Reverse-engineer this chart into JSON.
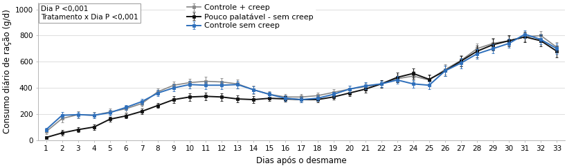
{
  "days": [
    1,
    2,
    3,
    4,
    5,
    6,
    7,
    8,
    9,
    10,
    11,
    12,
    13,
    14,
    15,
    16,
    17,
    18,
    19,
    20,
    21,
    22,
    23,
    24,
    25,
    26,
    27,
    28,
    29,
    30,
    31,
    32,
    33
  ],
  "controle_creep": [
    65,
    165,
    195,
    190,
    215,
    240,
    280,
    370,
    420,
    440,
    450,
    445,
    430,
    385,
    350,
    330,
    330,
    340,
    365,
    390,
    410,
    430,
    470,
    490,
    460,
    540,
    610,
    700,
    740,
    760,
    790,
    800,
    710
  ],
  "pouco_palatavel": [
    20,
    55,
    80,
    100,
    160,
    185,
    220,
    265,
    310,
    330,
    335,
    330,
    315,
    310,
    320,
    315,
    310,
    310,
    330,
    360,
    390,
    430,
    480,
    510,
    465,
    530,
    605,
    680,
    730,
    760,
    790,
    760,
    680
  ],
  "controle_sem_creep": [
    80,
    190,
    195,
    190,
    210,
    250,
    295,
    360,
    400,
    425,
    420,
    420,
    425,
    385,
    350,
    320,
    310,
    320,
    350,
    390,
    415,
    430,
    460,
    430,
    420,
    530,
    590,
    660,
    700,
    740,
    810,
    770,
    700
  ],
  "controle_creep_err": [
    20,
    30,
    25,
    25,
    25,
    25,
    25,
    25,
    30,
    30,
    35,
    30,
    35,
    30,
    25,
    25,
    20,
    25,
    25,
    25,
    25,
    25,
    30,
    35,
    35,
    40,
    40,
    40,
    40,
    35,
    35,
    35,
    40
  ],
  "pouco_palatavel_err": [
    10,
    20,
    20,
    20,
    20,
    20,
    20,
    20,
    25,
    30,
    30,
    30,
    25,
    25,
    20,
    20,
    20,
    20,
    20,
    25,
    25,
    30,
    35,
    40,
    35,
    40,
    40,
    45,
    45,
    40,
    40,
    40,
    45
  ],
  "controle_sem_creep_err": [
    15,
    25,
    20,
    20,
    20,
    20,
    20,
    25,
    25,
    30,
    30,
    30,
    30,
    25,
    20,
    20,
    20,
    20,
    20,
    25,
    25,
    25,
    30,
    30,
    30,
    40,
    40,
    35,
    35,
    35,
    30,
    35,
    40
  ],
  "color_creep": "#888888",
  "color_pouco": "#111111",
  "color_sem_creep": "#2e6fbb",
  "xlabel": "Dias após o desmame",
  "ylabel": "Consumo diário de ração (g/d)",
  "ylim": [
    0,
    1050
  ],
  "yticks": [
    0,
    200,
    400,
    600,
    800,
    1000
  ],
  "annotation_text": "Dia P <0,001\nTratamento x Dia P <0,001",
  "legend_labels": [
    "Controle + creep",
    "Pouco palatável - sem creep",
    "Controle sem creep"
  ],
  "fontsize_ticks": 7.5,
  "fontsize_labels": 8.5,
  "fontsize_legend": 8,
  "fontsize_annot": 7.5
}
